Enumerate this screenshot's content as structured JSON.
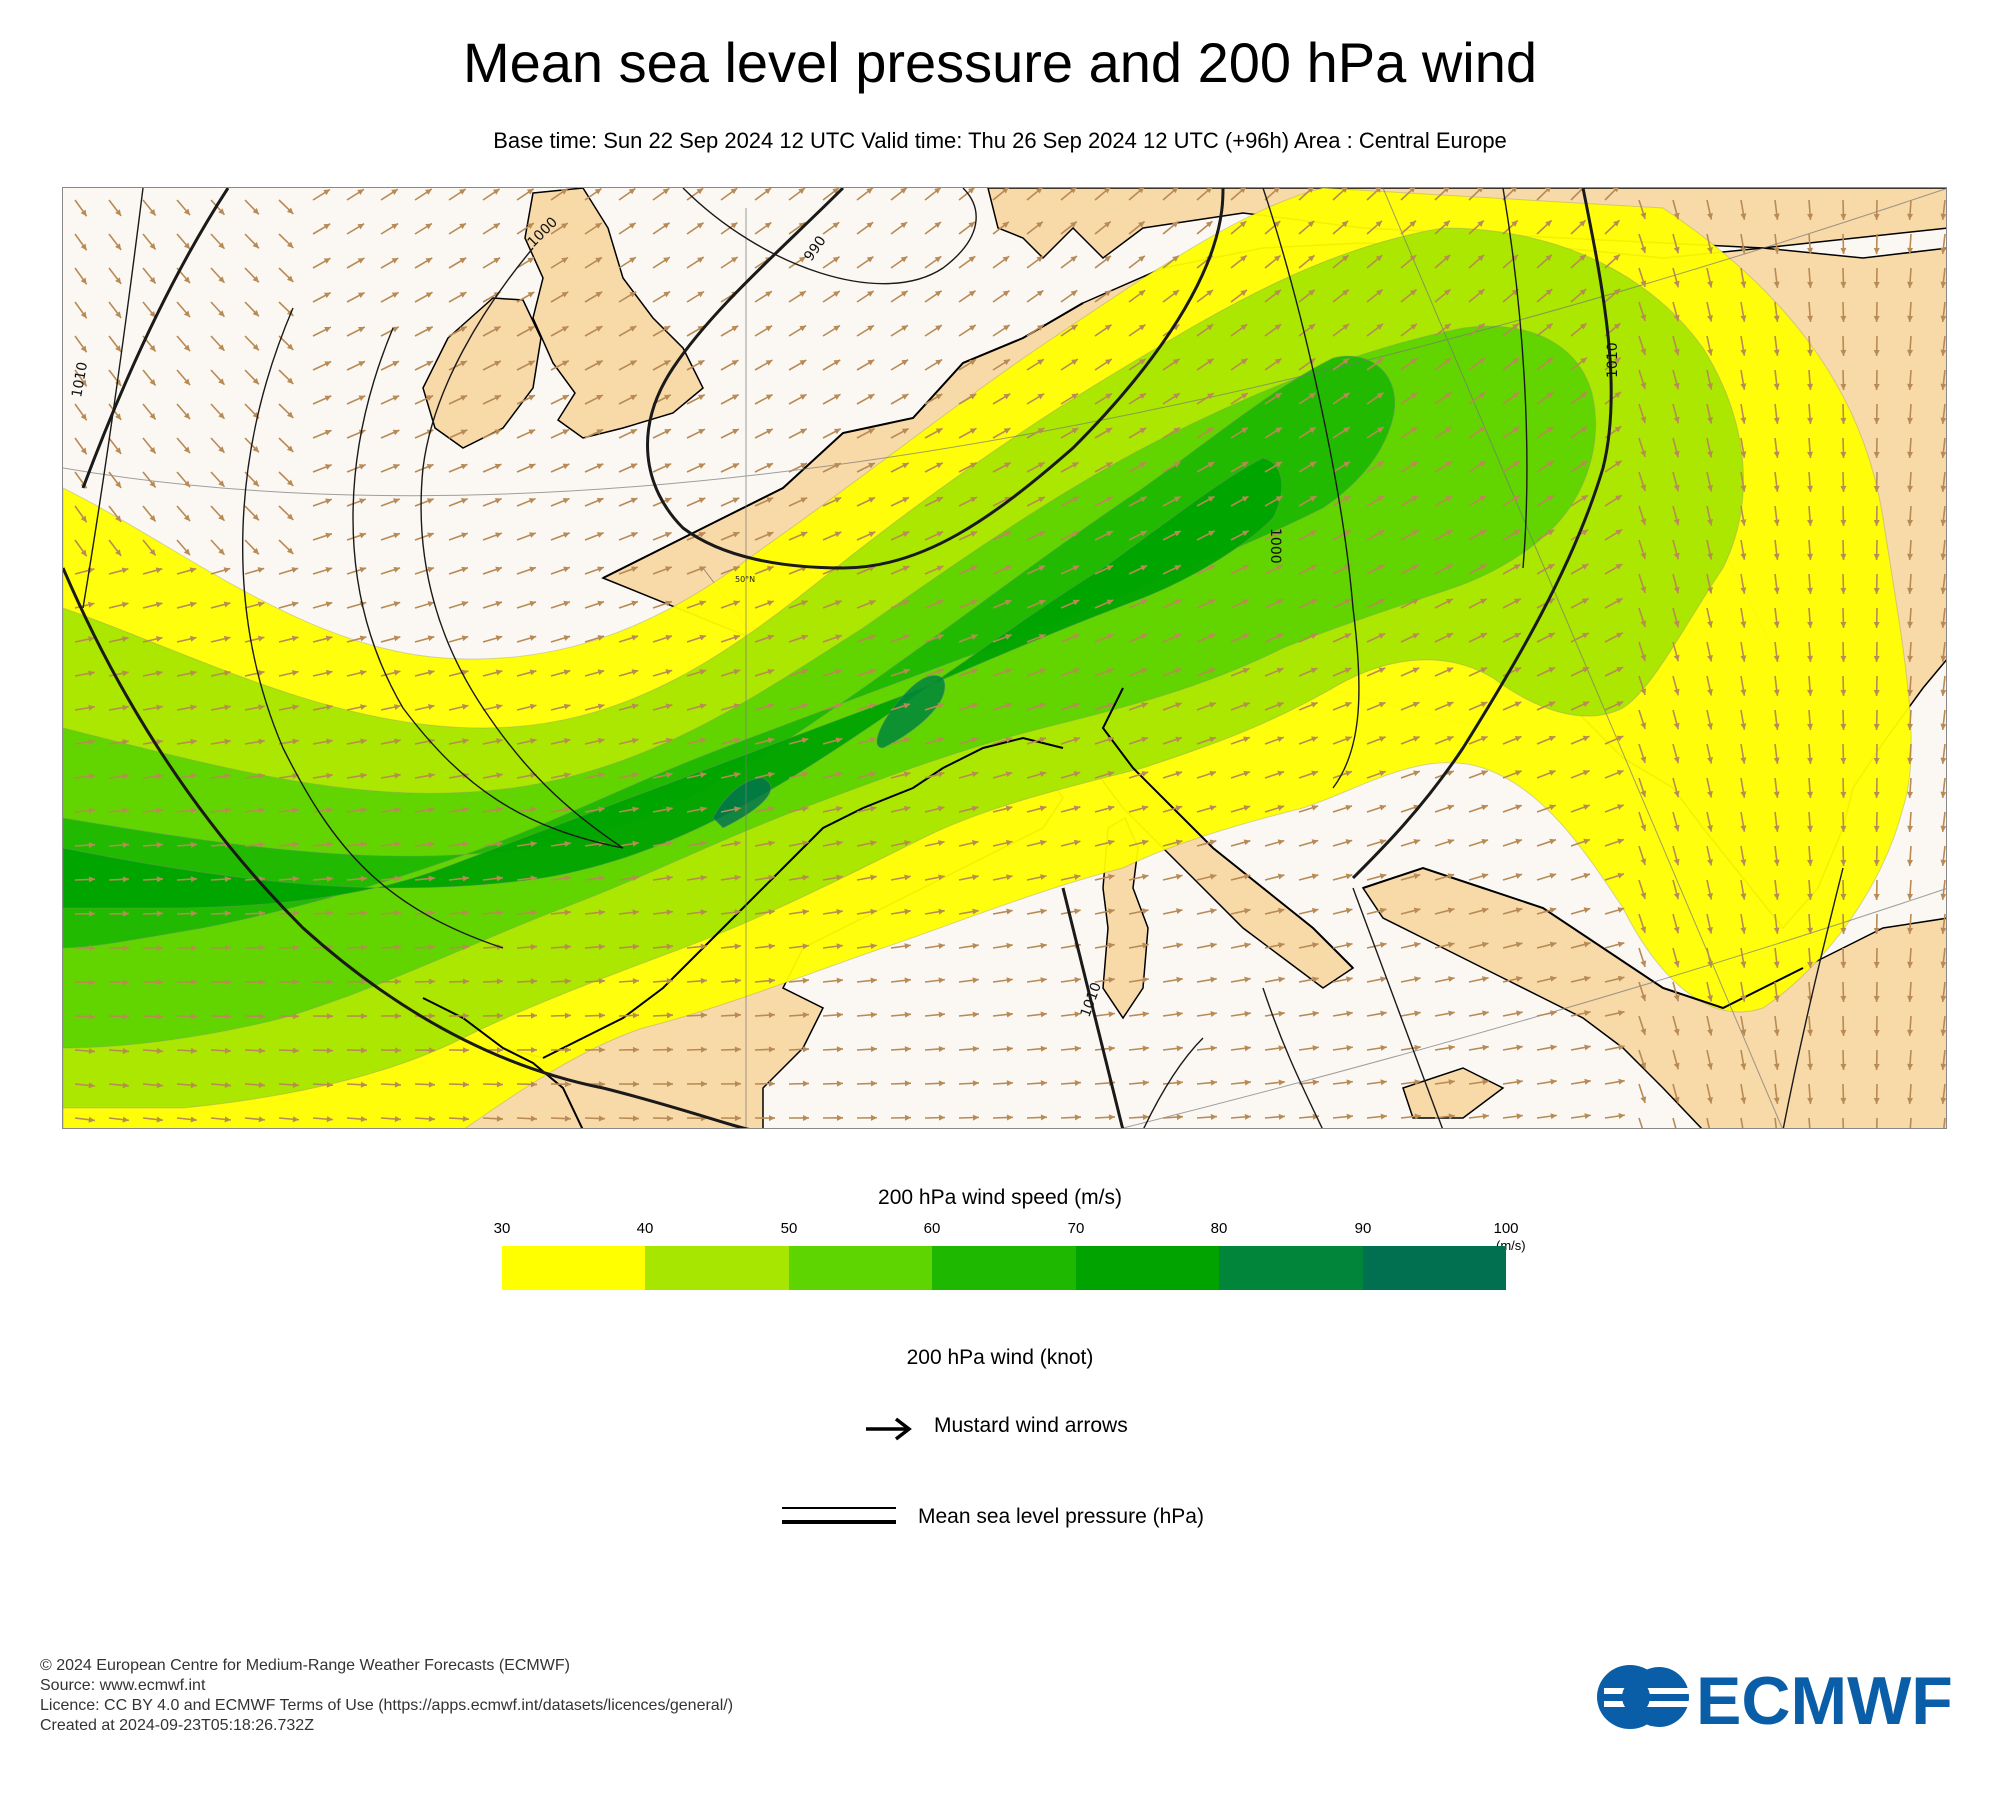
{
  "title": "Mean sea level pressure and 200 hPa wind",
  "subtitle": "Base time: Sun 22 Sep 2024 12 UTC Valid time: Thu 26 Sep 2024 12 UTC (+96h) Area : Central Europe",
  "map": {
    "isobar_labels": [
      "1010",
      "1000",
      "990",
      "1000",
      "1010",
      "1010"
    ],
    "latitude_label": "50°N",
    "colors": {
      "land": "#f8d9a8",
      "sea": "#fbf8f3",
      "isobar": "#1a1a1a",
      "arrow": "#b88a55",
      "coastline": "#000000"
    }
  },
  "colorbar": {
    "title": "200 hPa wind speed (m/s)",
    "ticks": [
      "30",
      "40",
      "50",
      "60",
      "70",
      "80",
      "90",
      "100"
    ],
    "unit": "(m/s)",
    "colors": [
      "#ffff00",
      "#a6e600",
      "#5ed400",
      "#1fb800",
      "#00a300",
      "#00853a",
      "#007050"
    ]
  },
  "legend": {
    "title": "200 hPa wind (knot)",
    "arrows_label": "Mustard wind arrows",
    "pressure_label": "Mean sea level pressure (hPa)"
  },
  "footer": {
    "copyright": "© 2024 European Centre for Medium-Range Weather Forecasts (ECMWF)",
    "source": "Source: www.ecmwf.int",
    "licence": "Licence: CC BY 4.0 and ECMWF Terms of Use (https://apps.ecmwf.int/datasets/licences/general/)",
    "created": "Created at 2024-09-23T05:18:26.732Z"
  },
  "logo_text": "ECMWF",
  "logo_color": "#0a5ea8"
}
